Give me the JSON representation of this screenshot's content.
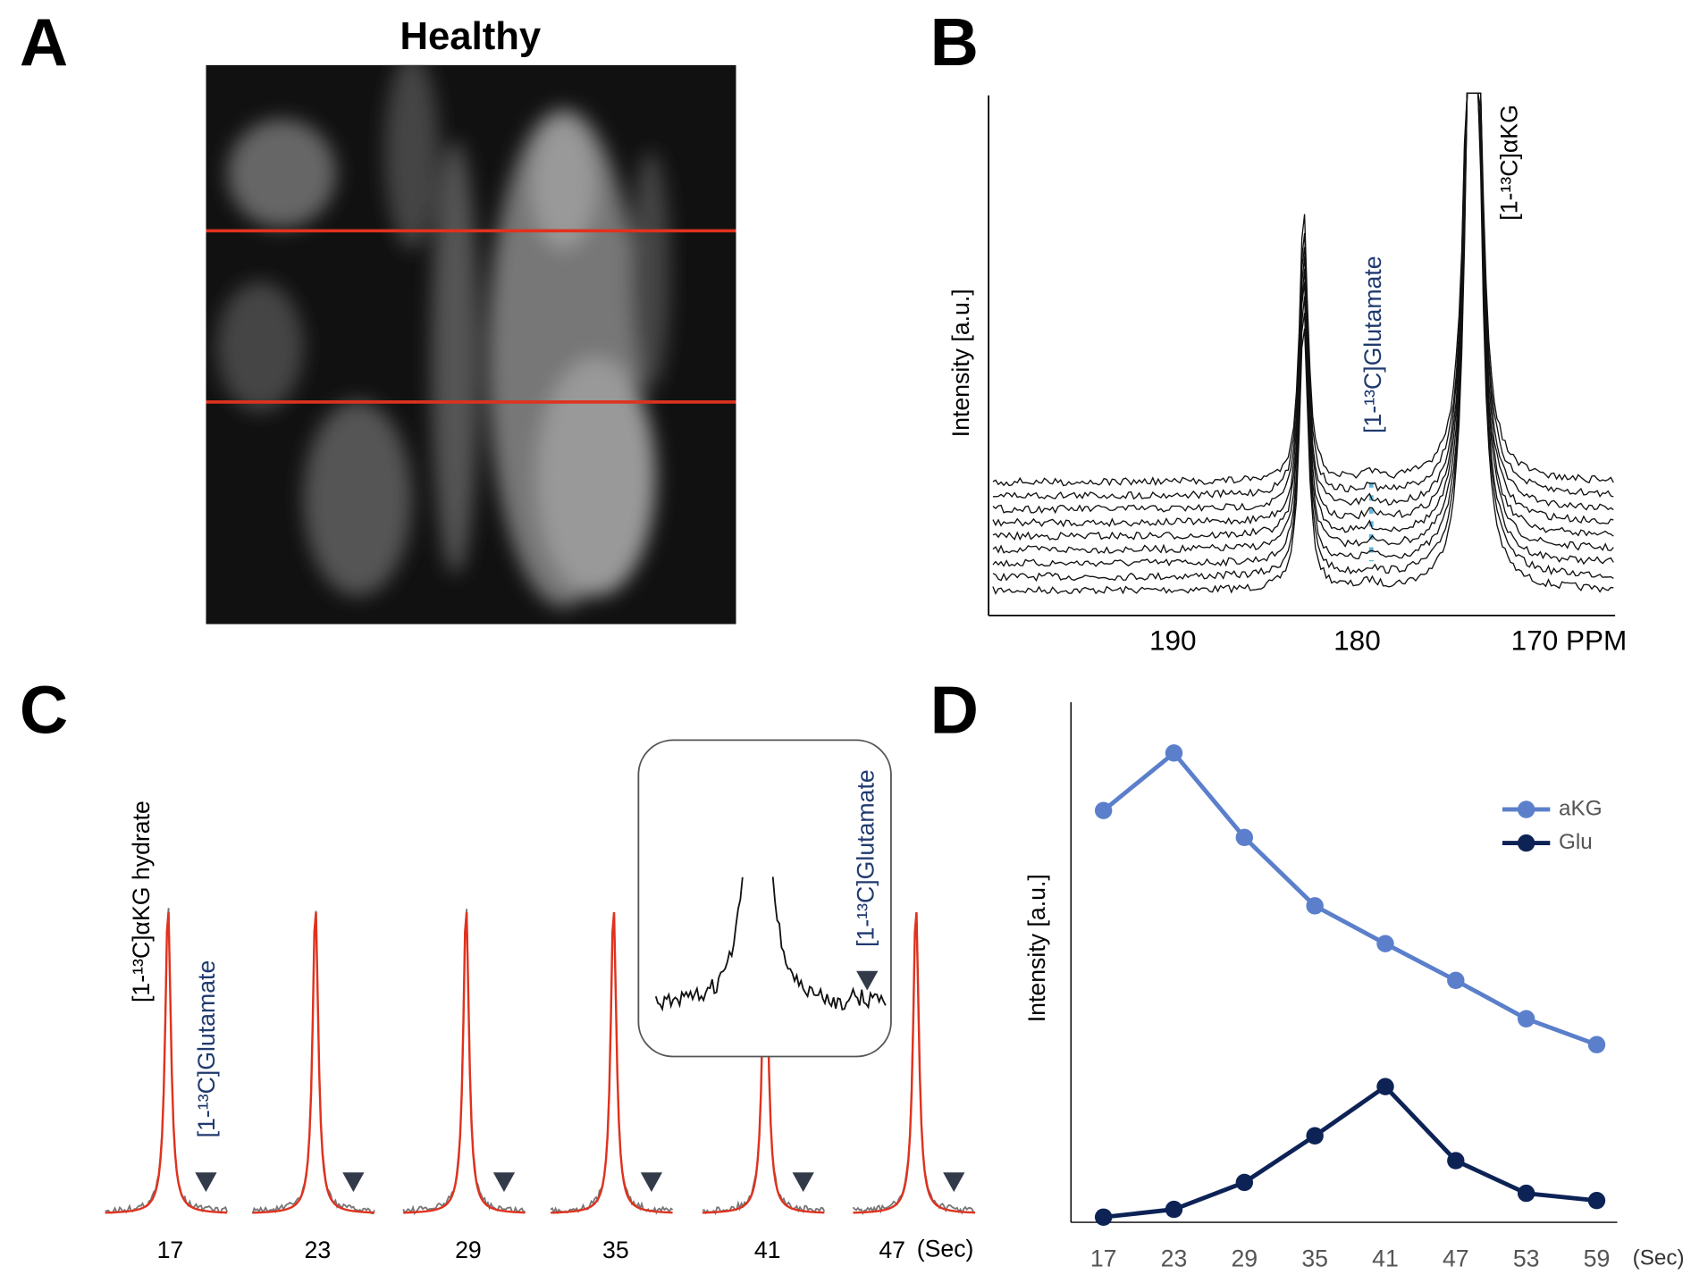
{
  "panel_labels": [
    "A",
    "B",
    "C",
    "D"
  ],
  "panel_a": {
    "title": "Healthy"
  },
  "chart_data": [
    {
      "type": "spectrum",
      "ylabel": "Intensity [a.u.]",
      "xlim": [
        200,
        166
      ],
      "xticks": [
        190,
        180,
        {
          "value": 170,
          "label": "170 PPM"
        }
      ],
      "annotations": [
        "[1-¹³C]Glutamate",
        "[1-¹³C]αKG"
      ]
    },
    {
      "type": "spectra",
      "categories": [
        "17",
        "23",
        "29",
        "35",
        "41",
        "47"
      ],
      "x_unit": "(Sec)",
      "annotations": [
        "[1-¹³C]αKG hydrate",
        "[1-¹³C]Glutamate"
      ],
      "inset_label": "[1-¹³C]Glutamate"
    },
    {
      "type": "line",
      "ylabel": "Intensity [a.u.]",
      "categories": [
        "17",
        "23",
        "29",
        "35",
        "41",
        "47",
        "53",
        "59"
      ],
      "x_unit": "(Sec)",
      "ylim": [
        0,
        100
      ],
      "series": [
        {
          "name": "aKG",
          "color": "#5b7fcb",
          "values": [
            79.5,
            90.6,
            74.3,
            61.1,
            53.8,
            46.7,
            39.3,
            34.3
          ]
        },
        {
          "name": "Glu",
          "color": "#0d2356",
          "values": [
            1.0,
            2.5,
            7.7,
            16.7,
            26.2,
            11.9,
            5.6,
            4.2
          ]
        }
      ],
      "legend": "upper-right"
    }
  ]
}
